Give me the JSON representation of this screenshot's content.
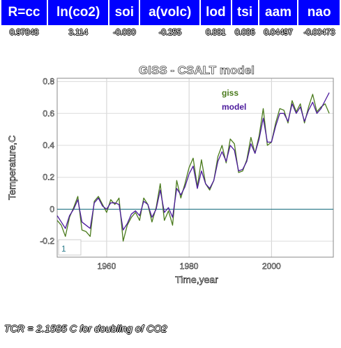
{
  "coefficients": {
    "headers": [
      "R=cc",
      "ln(co2)",
      "soi",
      "a(volc)",
      "lod",
      "tsi",
      "aam",
      "nao"
    ],
    "values": [
      "0.97848",
      "3.114",
      "-0.030",
      "-0.255",
      "0.881",
      "0.036",
      "0.04497",
      "-0.00473"
    ]
  },
  "chart_data": {
    "type": "line",
    "title": "GISS - CSALT model",
    "xlabel": "Time,year",
    "ylabel": "Temperature,C",
    "xlim": [
      1948,
      2015
    ],
    "ylim": [
      -0.3,
      0.82
    ],
    "xticks": [
      1960,
      1980,
      2000
    ],
    "yticks": [
      -0.2,
      0,
      0.2,
      0.4,
      0.6,
      0.8
    ],
    "ytick_labels": [
      "-0.2",
      "0",
      "0.2",
      "0.4",
      "0.6",
      "0.8"
    ],
    "zero_line": 0,
    "grid": true,
    "legend_box_text": "1",
    "series": [
      {
        "name": "giss",
        "color": "#4a7a1c",
        "x": [
          1948,
          1949,
          1950,
          1951,
          1952,
          1953,
          1954,
          1955,
          1956,
          1957,
          1958,
          1959,
          1960,
          1961,
          1962,
          1963,
          1964,
          1965,
          1966,
          1967,
          1968,
          1969,
          1970,
          1971,
          1972,
          1973,
          1974,
          1975,
          1976,
          1977,
          1978,
          1979,
          1980,
          1981,
          1982,
          1983,
          1984,
          1985,
          1986,
          1987,
          1988,
          1989,
          1990,
          1991,
          1992,
          1993,
          1994,
          1995,
          1996,
          1997,
          1998,
          1999,
          2000,
          2001,
          2002,
          2003,
          2004,
          2005,
          2006,
          2007,
          2008,
          2009,
          2010,
          2011,
          2012,
          2013,
          2014
        ],
        "y": [
          -0.07,
          -0.1,
          -0.17,
          -0.05,
          0.01,
          0.08,
          -0.13,
          -0.14,
          -0.17,
          0.05,
          0.08,
          0.03,
          -0.02,
          0.06,
          0.03,
          0.07,
          -0.2,
          -0.1,
          -0.05,
          -0.02,
          -0.07,
          0.07,
          0.03,
          -0.08,
          0.01,
          0.16,
          -0.07,
          -0.01,
          -0.1,
          0.18,
          0.07,
          0.16,
          0.26,
          0.32,
          0.14,
          0.31,
          0.16,
          0.12,
          0.18,
          0.33,
          0.4,
          0.29,
          0.44,
          0.41,
          0.23,
          0.24,
          0.31,
          0.45,
          0.35,
          0.46,
          0.63,
          0.4,
          0.42,
          0.54,
          0.63,
          0.62,
          0.54,
          0.68,
          0.61,
          0.66,
          0.54,
          0.64,
          0.72,
          0.61,
          0.64,
          0.66,
          0.6
        ]
      },
      {
        "name": "model",
        "color": "#4b1a9c",
        "x": [
          1948,
          1949,
          1950,
          1951,
          1952,
          1953,
          1954,
          1955,
          1956,
          1957,
          1958,
          1959,
          1960,
          1961,
          1962,
          1963,
          1964,
          1965,
          1966,
          1967,
          1968,
          1969,
          1970,
          1971,
          1972,
          1973,
          1974,
          1975,
          1976,
          1977,
          1978,
          1979,
          1980,
          1981,
          1982,
          1983,
          1984,
          1985,
          1986,
          1987,
          1988,
          1989,
          1990,
          1991,
          1992,
          1993,
          1994,
          1995,
          1996,
          1997,
          1998,
          1999,
          2000,
          2001,
          2002,
          2003,
          2004,
          2005,
          2006,
          2007,
          2008,
          2009,
          2010,
          2011,
          2012,
          2013,
          2014
        ],
        "y": [
          -0.04,
          -0.08,
          -0.12,
          -0.04,
          0.0,
          0.06,
          -0.08,
          -0.1,
          -0.12,
          0.04,
          0.07,
          0.02,
          0.0,
          0.04,
          0.04,
          0.03,
          -0.13,
          -0.09,
          -0.03,
          -0.01,
          -0.04,
          0.05,
          0.03,
          -0.05,
          0.0,
          0.12,
          -0.02,
          0.01,
          -0.05,
          0.13,
          0.09,
          0.14,
          0.22,
          0.27,
          0.13,
          0.24,
          0.16,
          0.13,
          0.18,
          0.3,
          0.36,
          0.3,
          0.4,
          0.37,
          0.24,
          0.25,
          0.3,
          0.41,
          0.35,
          0.44,
          0.57,
          0.42,
          0.42,
          0.52,
          0.6,
          0.6,
          0.55,
          0.66,
          0.6,
          0.64,
          0.55,
          0.62,
          0.67,
          0.6,
          0.63,
          0.68,
          0.73
        ]
      }
    ]
  },
  "tcr_note": "TCR = 2.1585 C for doubling of CO2"
}
